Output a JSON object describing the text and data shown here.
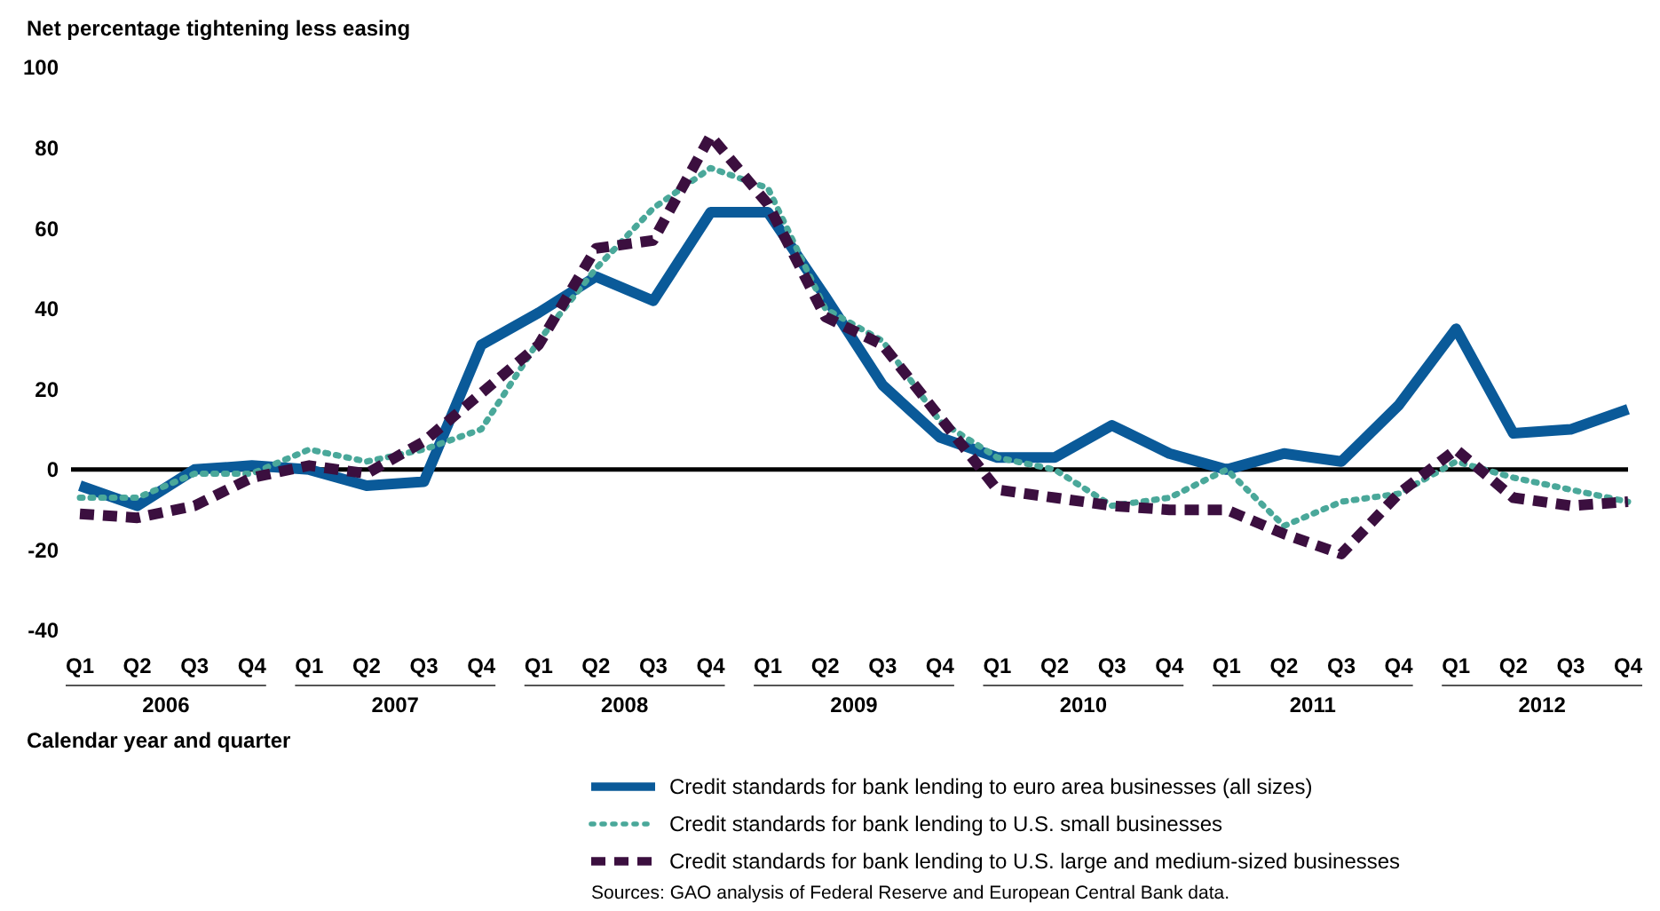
{
  "chart_data": {
    "type": "line",
    "ylabel": "Net percentage tightening less easing",
    "xlabel": "Calendar year and quarter",
    "categories": [
      "Q1",
      "Q2",
      "Q3",
      "Q4",
      "Q1",
      "Q2",
      "Q3",
      "Q4",
      "Q1",
      "Q2",
      "Q3",
      "Q4",
      "Q1",
      "Q2",
      "Q3",
      "Q4",
      "Q1",
      "Q2",
      "Q3",
      "Q4",
      "Q1",
      "Q2",
      "Q3",
      "Q4",
      "Q1",
      "Q2",
      "Q3",
      "Q4"
    ],
    "series": [
      {
        "name": "Credit standards for bank lending to euro area businesses (all sizes)",
        "color": "#0a5a99",
        "line_style": "solid",
        "values": [
          -4,
          -9,
          0,
          1,
          0,
          -4,
          -3,
          31,
          39,
          48,
          42,
          64,
          64,
          43,
          21,
          8,
          3,
          3,
          11,
          4,
          0,
          4,
          2,
          16,
          35,
          9,
          10,
          15
        ]
      },
      {
        "name": "Credit standards for bank lending to U.S. small businesses",
        "color": "#4aa89a",
        "line_style": "dotted",
        "values": [
          -7,
          -7,
          -1,
          -1,
          5,
          2,
          5,
          10,
          32,
          50,
          65,
          75,
          70,
          40,
          32,
          12,
          3,
          0,
          -9,
          -7,
          0,
          -14,
          -8,
          -6,
          2,
          -2,
          -5,
          -8
        ]
      },
      {
        "name": "Credit standards for bank lending to U.S. large and medium-sized businesses",
        "color": "#3b0f3f",
        "line_style": "dashed",
        "values": [
          -11,
          -12,
          -9,
          -2,
          1,
          -1,
          7,
          19,
          31,
          55,
          57,
          83,
          66,
          38,
          31,
          13,
          -5,
          -7,
          -9,
          -10,
          -10,
          -16,
          -21,
          -6,
          5,
          -7,
          -9,
          -8
        ]
      }
    ],
    "ylim": [
      -40,
      100
    ],
    "yticks": [
      -40,
      -20,
      0,
      20,
      40,
      60,
      80,
      100
    ],
    "ref_lines": [
      {
        "axis": "y",
        "value": 0,
        "color": "#000000"
      }
    ],
    "legend": "bottom",
    "grid": false,
    "marker": "none",
    "annotations": [
      "2006",
      "2007",
      "2008",
      "2009",
      "2010",
      "2011",
      "2012",
      "Sources: GAO analysis of Federal Reserve and European Central Bank data."
    ]
  }
}
